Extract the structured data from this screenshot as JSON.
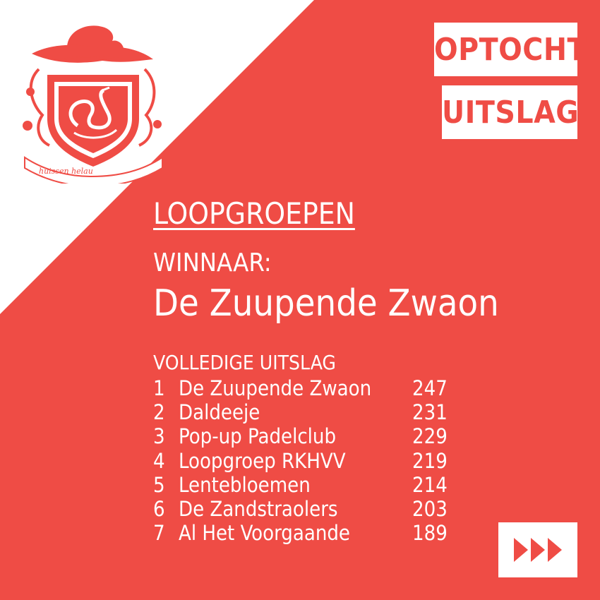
{
  "tags": {
    "line1": "OPTOCHT",
    "line2": "UITSLAG"
  },
  "logo": {
    "motto": "huissen helau",
    "icon": "coat-of-arms-swan-icon"
  },
  "category": "LOOPGROEPEN",
  "winner": {
    "label": "WINNAAR:",
    "name": "De Zuupende Zwaon"
  },
  "results": {
    "label": "VOLLEDIGE UITSLAG",
    "rows": [
      {
        "rank": "1",
        "name": "De Zuupende Zwaon",
        "score": "247"
      },
      {
        "rank": "2",
        "name": "Daldeeje",
        "score": "231"
      },
      {
        "rank": "3",
        "name": "Pop-up Padelclub",
        "score": "229"
      },
      {
        "rank": "4",
        "name": "Loopgroep RKHVV",
        "score": "219"
      },
      {
        "rank": "5",
        "name": "Lentebloemen",
        "score": "214"
      },
      {
        "rank": "6",
        "name": "De Zandstraolers",
        "score": "203"
      },
      {
        "rank": "7",
        "name": "Al Het Voorgaande",
        "score": "189"
      }
    ]
  },
  "next_button": {
    "icon": "triple-chevron-right-icon"
  },
  "colors": {
    "accent": "#ef4c45",
    "white": "#ffffff"
  }
}
